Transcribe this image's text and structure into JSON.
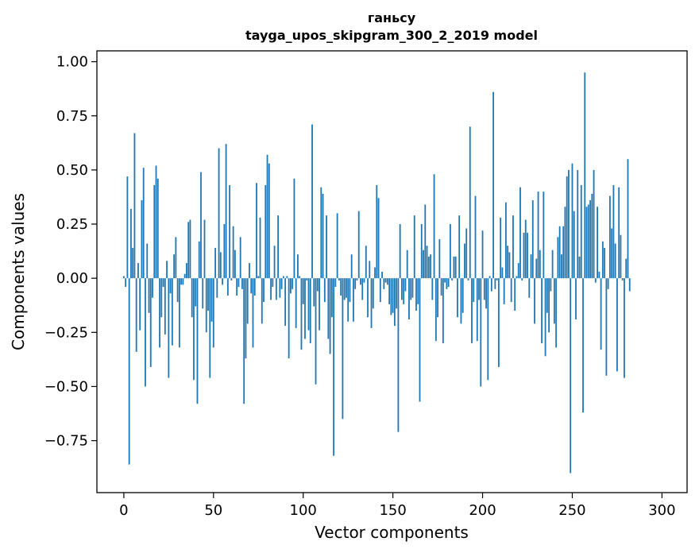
{
  "chart_data": {
    "type": "bar",
    "title": "ганьсу",
    "subtitle": "tayga_upos_skipgram_300_2_2019 model",
    "xlabel": "Vector components",
    "ylabel": "Components values",
    "xlim": [
      -15,
      314
    ],
    "ylim": [
      -0.99,
      1.05
    ],
    "xticks": [
      0,
      50,
      100,
      150,
      200,
      250,
      300
    ],
    "xtick_labels": [
      "0",
      "50",
      "100",
      "150",
      "200",
      "250",
      "300"
    ],
    "yticks": [
      -0.75,
      -0.5,
      -0.25,
      0.0,
      0.25,
      0.5,
      0.75,
      1.0
    ],
    "ytick_labels": [
      "−0.75",
      "−0.50",
      "−0.25",
      "0.00",
      "0.25",
      "0.50",
      "0.75",
      "1.00"
    ],
    "grid": false,
    "bar_color": "#1f77b4",
    "values": [
      0.01,
      -0.04,
      0.47,
      -0.86,
      0.32,
      0.14,
      0.67,
      -0.34,
      0.07,
      -0.24,
      0.36,
      0.51,
      -0.5,
      0.16,
      -0.16,
      -0.41,
      -0.09,
      0.43,
      0.52,
      0.46,
      -0.32,
      -0.18,
      -0.04,
      -0.26,
      0.08,
      -0.46,
      -0.07,
      -0.31,
      0.11,
      0.19,
      -0.11,
      -0.32,
      -0.03,
      -0.03,
      0.02,
      0.07,
      0.26,
      0.27,
      -0.18,
      -0.47,
      -0.13,
      -0.58,
      0.17,
      0.49,
      -0.14,
      0.27,
      -0.25,
      -0.15,
      -0.46,
      -0.2,
      -0.32,
      0.14,
      -0.09,
      0.6,
      0.12,
      -0.03,
      0.25,
      0.62,
      -0.08,
      0.43,
      -0.01,
      0.24,
      0.13,
      -0.08,
      -0.04,
      0.19,
      -0.05,
      -0.58,
      -0.37,
      -0.21,
      0.07,
      -0.07,
      -0.32,
      -0.08,
      0.44,
      0.01,
      0.28,
      -0.21,
      -0.11,
      0.43,
      0.57,
      0.53,
      -0.1,
      -0.04,
      0.15,
      -0.1,
      0.29,
      -0.09,
      -0.05,
      0.01,
      -0.22,
      0.01,
      -0.37,
      -0.07,
      -0.05,
      0.46,
      -0.23,
      0.11,
      0.01,
      -0.33,
      -0.12,
      -0.28,
      -0.01,
      -0.24,
      -0.3,
      0.71,
      -0.13,
      -0.49,
      -0.06,
      -0.24,
      0.42,
      0.39,
      -0.11,
      0.29,
      -0.28,
      -0.35,
      -0.18,
      -0.82,
      -0.04,
      0.3,
      -0.01,
      -0.08,
      -0.65,
      -0.1,
      -0.09,
      -0.2,
      -0.11,
      0.11,
      -0.2,
      -0.05,
      -0.01,
      0.31,
      -0.03,
      -0.1,
      -0.02,
      0.15,
      -0.18,
      0.08,
      -0.23,
      -0.14,
      0.05,
      0.43,
      0.37,
      -0.11,
      0.03,
      -0.05,
      -0.02,
      -0.03,
      -0.12,
      -0.17,
      -0.16,
      -0.22,
      -0.14,
      -0.71,
      0.25,
      -0.1,
      -0.12,
      -0.06,
      0.13,
      -0.19,
      -0.1,
      -0.09,
      0.29,
      -0.15,
      -0.12,
      -0.57,
      0.25,
      0.13,
      0.34,
      0.15,
      0.1,
      0.11,
      -0.1,
      0.48,
      -0.29,
      -0.18,
      0.18,
      -0.08,
      -0.3,
      -0.02,
      -0.05,
      -0.04,
      0.25,
      -0.01,
      0.1,
      0.1,
      -0.18,
      0.29,
      -0.21,
      -0.16,
      0.16,
      0.23,
      -0.01,
      0.7,
      -0.3,
      -0.11,
      0.38,
      -0.29,
      -0.1,
      -0.5,
      0.22,
      -0.1,
      -0.14,
      -0.47,
      0.01,
      -0.06,
      0.86,
      -0.05,
      -0.01,
      -0.41,
      0.28,
      0.05,
      -0.12,
      0.35,
      0.15,
      0.12,
      -0.11,
      0.29,
      -0.15,
      0.01,
      0.07,
      0.42,
      -0.01,
      0.21,
      0.27,
      0.21,
      -0.09,
      0.11,
      0.36,
      -0.21,
      0.09,
      0.4,
      0.13,
      -0.3,
      0.4,
      -0.36,
      -0.16,
      -0.25,
      -0.06,
      0.13,
      -0.21,
      -0.32,
      0.19,
      0.24,
      0.11,
      0.24,
      0.33,
      0.47,
      0.5,
      -0.9,
      0.53,
      0.31,
      -0.19,
      0.5,
      0.1,
      0.43,
      -0.62,
      0.95,
      0.33,
      0.34,
      0.36,
      0.39,
      0.5,
      -0.02,
      0.33,
      0.03,
      -0.33,
      0.17,
      0.14,
      -0.45,
      -0.05,
      0.38,
      0.23,
      0.43,
      0.16,
      -0.43,
      0.42,
      0.2,
      -0.01,
      -0.46,
      0.09,
      0.55,
      -0.06
    ]
  }
}
